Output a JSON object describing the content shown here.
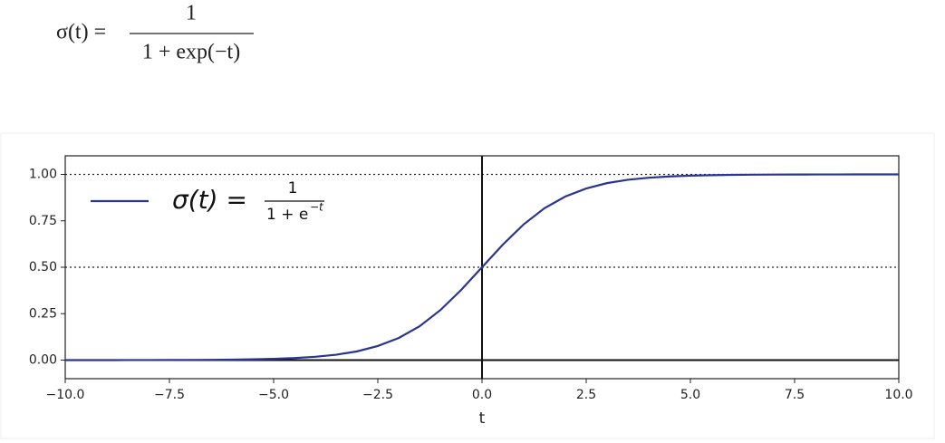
{
  "formula": {
    "lhs": "σ(t) =",
    "numerator": "1",
    "denominator": "1 + exp(−t)"
  },
  "chart_data": {
    "type": "line",
    "x": [
      -10,
      -9.5,
      -9,
      -8.5,
      -8,
      -7.5,
      -7,
      -6.5,
      -6,
      -5.5,
      -5,
      -4.5,
      -4,
      -3.5,
      -3,
      -2.5,
      -2,
      -1.5,
      -1,
      -0.5,
      0,
      0.5,
      1,
      1.5,
      2,
      2.5,
      3,
      3.5,
      4,
      4.5,
      5,
      5.5,
      6,
      6.5,
      7,
      7.5,
      8,
      8.5,
      9,
      9.5,
      10
    ],
    "series": [
      {
        "color": "#2b3590",
        "values": [
          5e-05,
          7e-05,
          0.00012,
          0.0002,
          0.00034,
          0.00055,
          0.00091,
          0.0015,
          0.0025,
          0.0041,
          0.0067,
          0.011,
          0.018,
          0.029,
          0.047,
          0.076,
          0.119,
          0.182,
          0.269,
          0.378,
          0.5,
          0.622,
          0.731,
          0.818,
          0.881,
          0.924,
          0.953,
          0.971,
          0.982,
          0.989,
          0.9933,
          0.9959,
          0.9975,
          0.9985,
          0.99909,
          0.99945,
          0.99966,
          0.9998,
          0.99988,
          0.99993,
          0.99995
        ]
      }
    ],
    "legend": {
      "lhs": "σ(t) =",
      "numerator": "1",
      "denominator": "1 + e",
      "exponent": "−t"
    },
    "legend_position": "upper left",
    "xlabel": "t",
    "xlim": [
      -10,
      10
    ],
    "ylim": [
      -0.1,
      1.1
    ],
    "xticks": [
      {
        "value": -10,
        "label": "−10.0"
      },
      {
        "value": -7.5,
        "label": "−7.5"
      },
      {
        "value": -5,
        "label": "−5.0"
      },
      {
        "value": -2.5,
        "label": "−2.5"
      },
      {
        "value": 0,
        "label": "0.0"
      },
      {
        "value": 2.5,
        "label": "2.5"
      },
      {
        "value": 5,
        "label": "5.0"
      },
      {
        "value": 7.5,
        "label": "7.5"
      },
      {
        "value": 10,
        "label": "10.0"
      }
    ],
    "yticks": [
      {
        "value": 0,
        "label": "0.00"
      },
      {
        "value": 0.25,
        "label": "0.25"
      },
      {
        "value": 0.5,
        "label": "0.50"
      },
      {
        "value": 0.75,
        "label": "0.75"
      },
      {
        "value": 1,
        "label": "1.00"
      }
    ],
    "dotted_hlines": [
      0.5,
      1
    ],
    "solid_hlines": [
      0
    ],
    "solid_vlines": [
      0
    ]
  }
}
